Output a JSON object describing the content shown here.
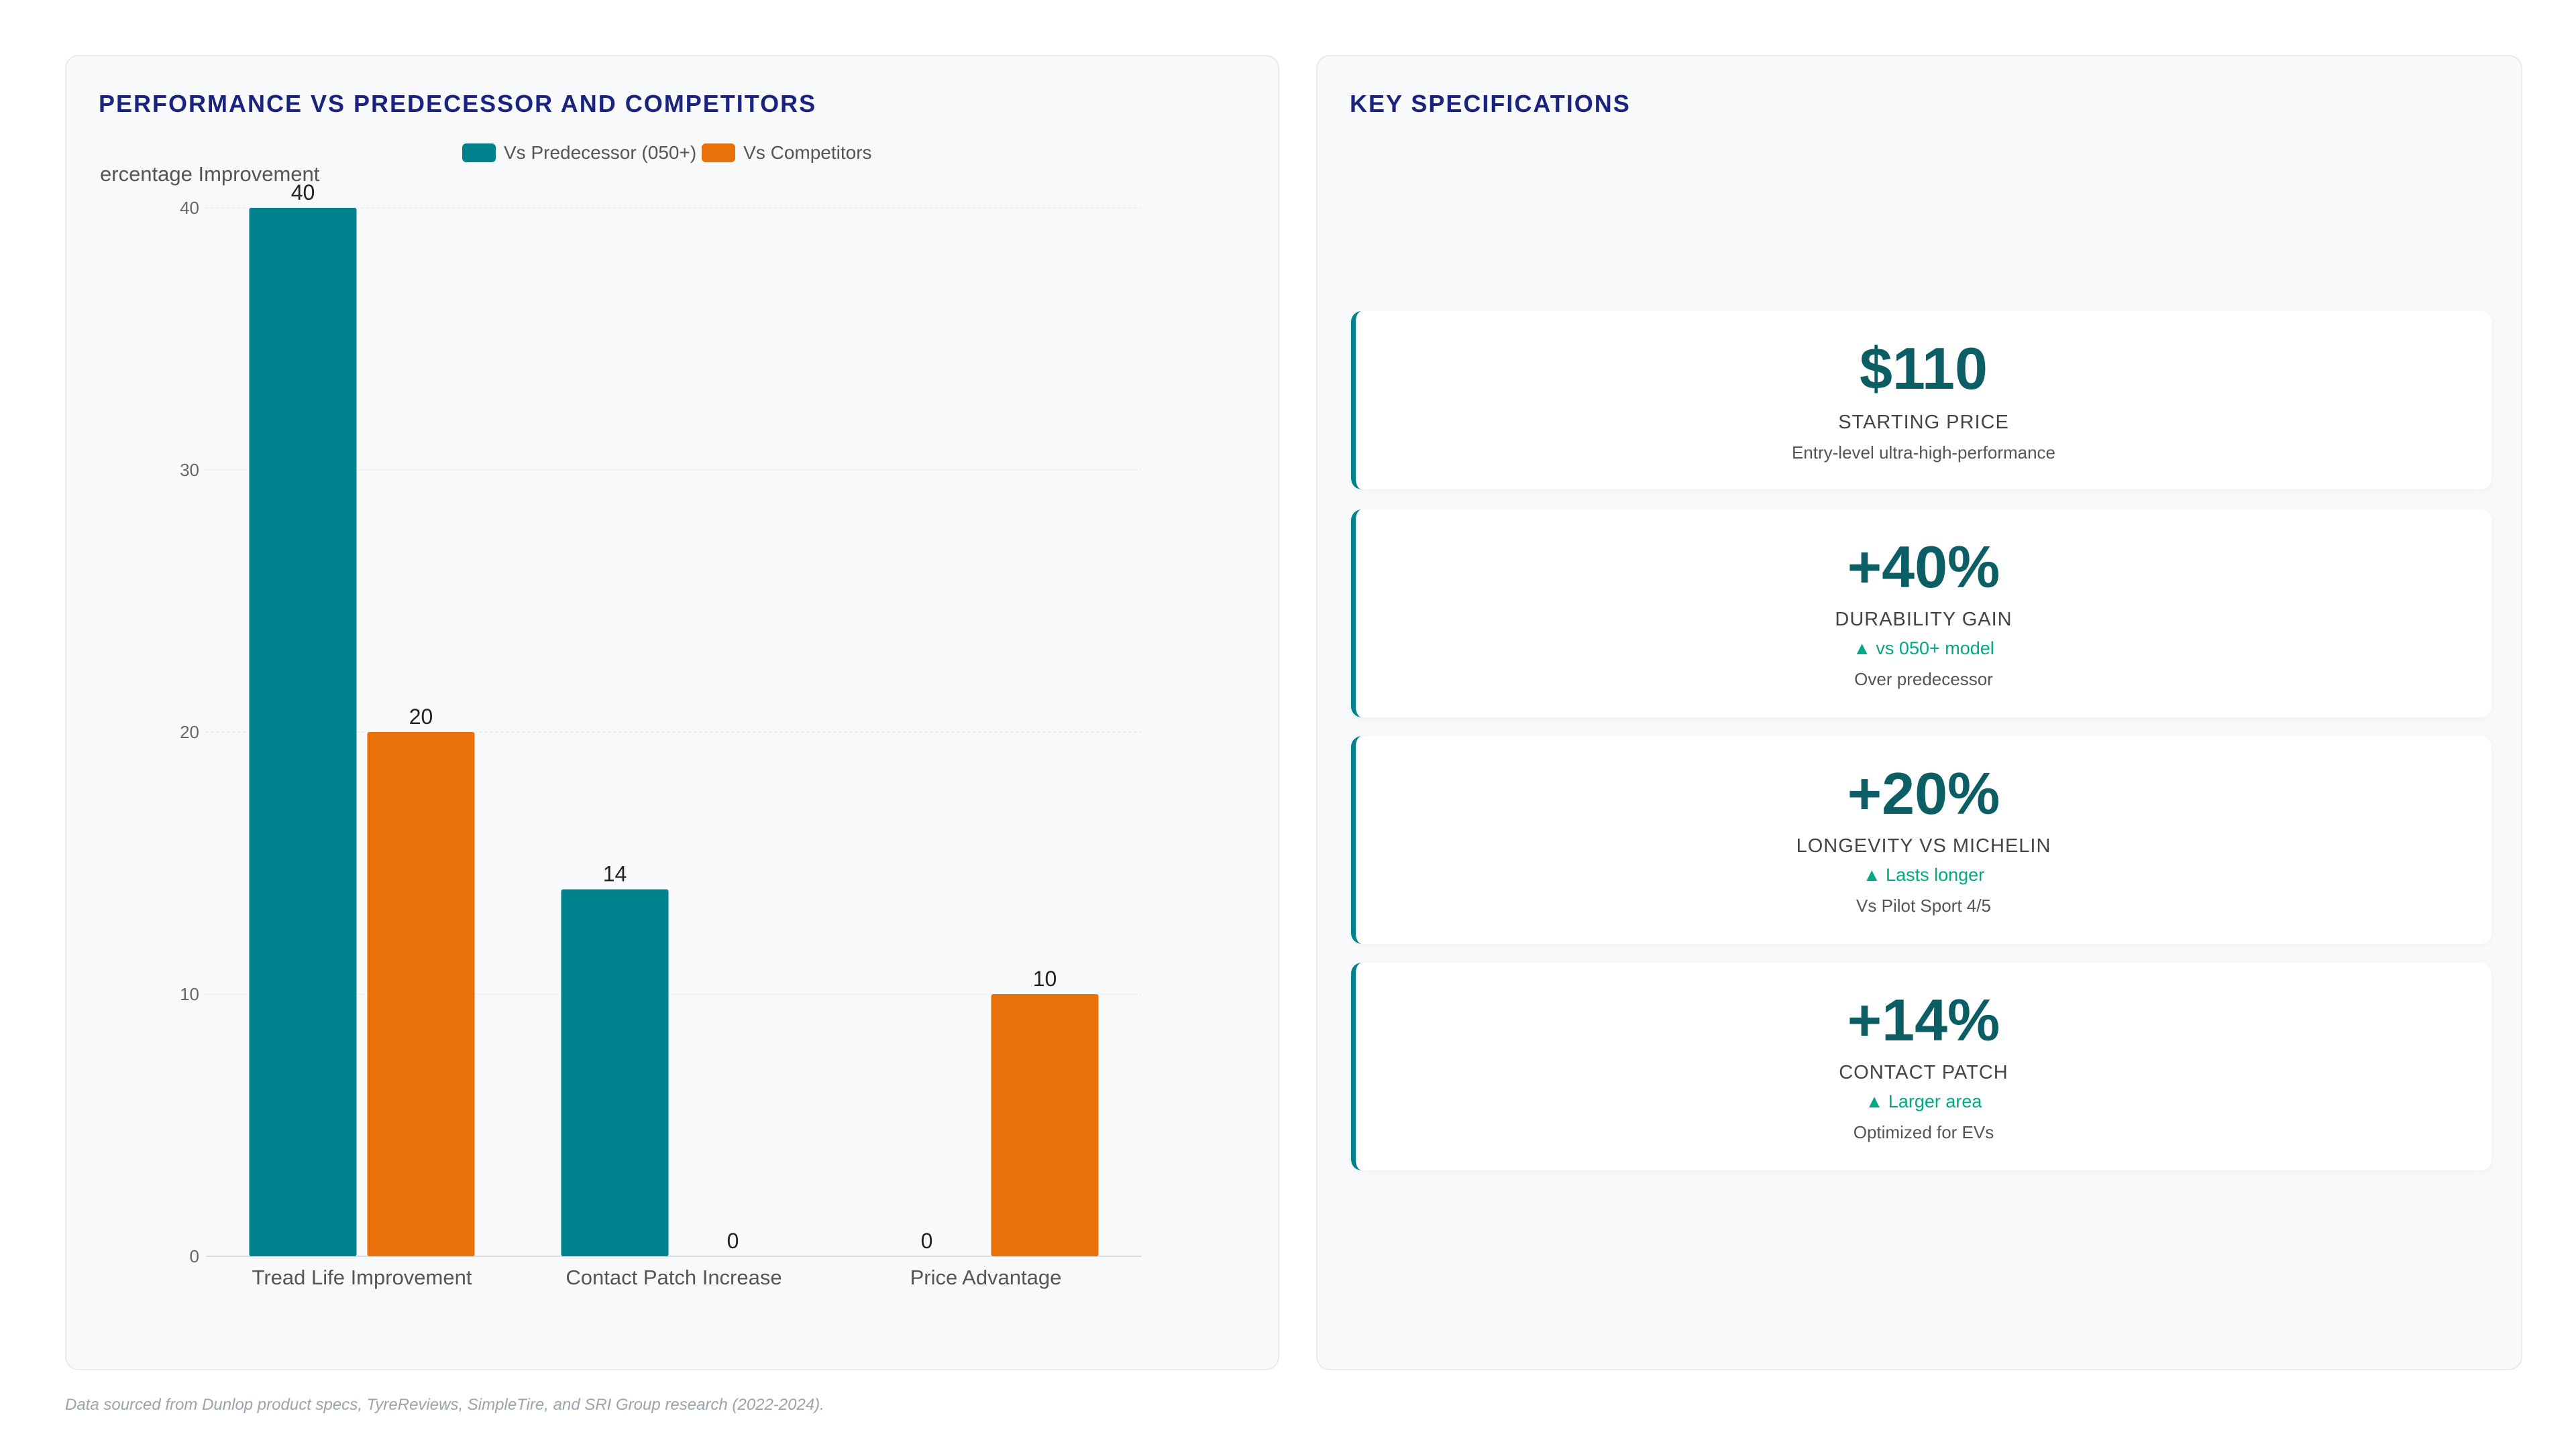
{
  "chart_panel": {
    "title": "PERFORMANCE VS PREDECESSOR AND COMPETITORS"
  },
  "spec_panel": {
    "title": "KEY SPECIFICATIONS"
  },
  "chart_data": {
    "type": "bar",
    "categories": [
      "Tread Life Improvement",
      "Contact Patch Increase",
      "Price Advantage"
    ],
    "series": [
      {
        "name": "Vs Predecessor (050+)",
        "values": [
          40,
          14,
          0
        ],
        "color": "#00838f"
      },
      {
        "name": "Vs Competitors",
        "values": [
          20,
          0,
          10
        ],
        "color": "#e8710a"
      }
    ],
    "ylabel": "ercentage Improvement",
    "ylim": [
      0,
      40
    ],
    "yticks": [
      0,
      10,
      20,
      30,
      40
    ],
    "grid": true,
    "legend": "top"
  },
  "cards": [
    {
      "value": "$110",
      "label": "STARTING PRICE",
      "trend": "",
      "sub": "Entry-level ultra-high-performance"
    },
    {
      "value": "+40%",
      "label": "DURABILITY GAIN",
      "trend": "▲ vs 050+ model",
      "sub": "Over predecessor"
    },
    {
      "value": "+20%",
      "label": "LONGEVITY VS MICHELIN",
      "trend": "▲ Lasts longer",
      "sub": "Vs Pilot Sport 4/5"
    },
    {
      "value": "+14%",
      "label": "CONTACT PATCH",
      "trend": "▲ Larger area",
      "sub": "Optimized for EVs"
    }
  ],
  "footnote": "Data sourced from Dunlop product specs, TyreReviews, SimpleTire, and SRI Group research (2022-2024).",
  "colors": {
    "accent": "#00838f",
    "secondary": "#e8710a",
    "title": "#1a237e"
  }
}
